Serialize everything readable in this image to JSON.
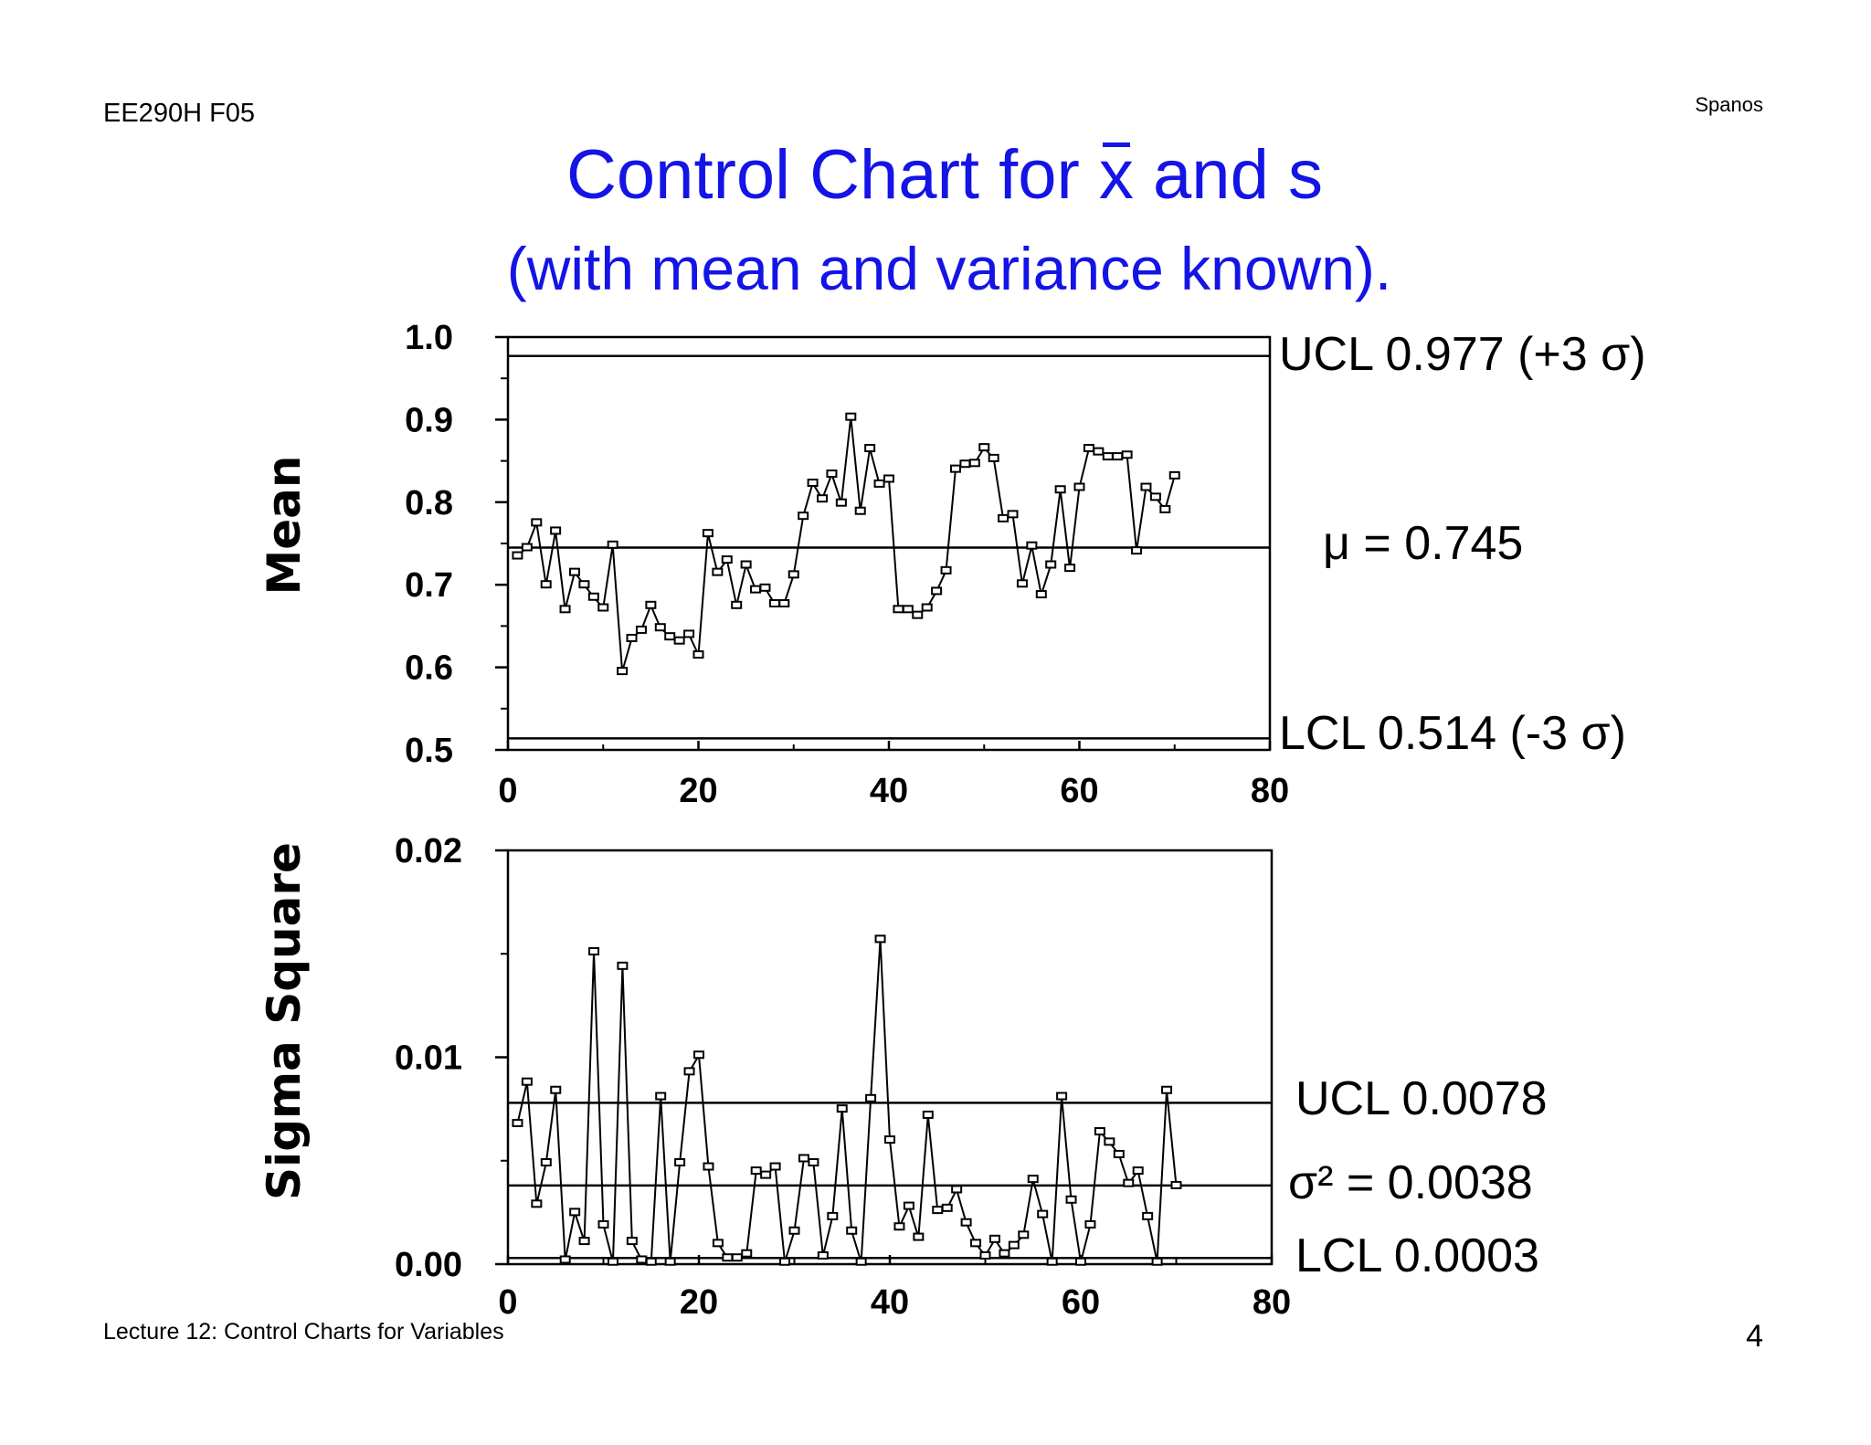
{
  "header": {
    "course": "EE290H F05",
    "author": "Spanos"
  },
  "title": {
    "prefix": "Control Chart for ",
    "xbar": "x",
    "suffix": " and s"
  },
  "subtitle": "(with mean and variance known).",
  "footer": {
    "lecture": "Lecture 12: Control Charts for Variables",
    "page": "4"
  },
  "chart_data": [
    {
      "type": "line",
      "ylabel": "Mean",
      "xlim": [
        0,
        80
      ],
      "ylim": [
        0.5,
        1.0
      ],
      "xticks": [
        0,
        20,
        40,
        60,
        80
      ],
      "xtick_labels": [
        "0",
        "20",
        "40",
        "60",
        "80"
      ],
      "yticks": [
        0.5,
        0.6,
        0.7,
        0.8,
        0.9,
        1.0
      ],
      "ytick_labels": [
        "0.5",
        "0.6",
        "0.7",
        "0.8",
        "0.9",
        "1.0"
      ],
      "reference_lines": [
        {
          "value": 0.977,
          "label": "UCL 0.977 (+3 σ)"
        },
        {
          "value": 0.745,
          "label": "μ = 0.745"
        },
        {
          "value": 0.514,
          "label": "LCL 0.514 (-3 σ)"
        }
      ],
      "x": [
        1,
        2,
        3,
        4,
        5,
        6,
        7,
        8,
        9,
        10,
        11,
        12,
        13,
        14,
        15,
        16,
        17,
        18,
        19,
        20,
        21,
        22,
        23,
        24,
        25,
        26,
        27,
        28,
        29,
        30,
        31,
        32,
        33,
        34,
        35,
        36,
        37,
        38,
        39,
        40,
        41,
        42,
        43,
        44,
        45,
        46,
        47,
        48,
        49,
        50,
        51,
        52,
        53,
        54,
        55,
        56,
        57,
        58,
        59,
        60,
        61,
        62,
        63,
        64,
        65,
        66,
        67,
        68,
        69,
        70
      ],
      "values": [
        0.735,
        0.745,
        0.775,
        0.7,
        0.765,
        0.67,
        0.715,
        0.7,
        0.685,
        0.672,
        0.748,
        0.595,
        0.635,
        0.645,
        0.675,
        0.648,
        0.637,
        0.632,
        0.64,
        0.615,
        0.762,
        0.715,
        0.73,
        0.675,
        0.724,
        0.694,
        0.696,
        0.677,
        0.677,
        0.712,
        0.783,
        0.823,
        0.804,
        0.834,
        0.799,
        0.903,
        0.789,
        0.865,
        0.822,
        0.828,
        0.67,
        0.67,
        0.663,
        0.672,
        0.692,
        0.717,
        0.84,
        0.846,
        0.847,
        0.866,
        0.853,
        0.78,
        0.785,
        0.701,
        0.747,
        0.688,
        0.724,
        0.815,
        0.72,
        0.818,
        0.865,
        0.861,
        0.855,
        0.855,
        0.857,
        0.741,
        0.818,
        0.806,
        0.791,
        0.832
      ]
    },
    {
      "type": "line",
      "ylabel": "Sigma Square",
      "xlim": [
        0,
        80
      ],
      "ylim": [
        0.0,
        0.02
      ],
      "xticks": [
        0,
        20,
        40,
        60,
        80
      ],
      "xtick_labels": [
        "0",
        "20",
        "40",
        "60",
        "80"
      ],
      "yticks": [
        0.0,
        0.01,
        0.02
      ],
      "ytick_labels": [
        "0.00",
        "0.01",
        "0.02"
      ],
      "reference_lines": [
        {
          "value": 0.0078,
          "label": "UCL 0.0078"
        },
        {
          "value": 0.0038,
          "label": "σ² = 0.0038"
        },
        {
          "value": 0.0003,
          "label": "LCL 0.0003"
        }
      ],
      "x": [
        1,
        2,
        3,
        4,
        5,
        6,
        7,
        8,
        9,
        10,
        11,
        12,
        13,
        14,
        15,
        16,
        17,
        18,
        19,
        20,
        21,
        22,
        23,
        24,
        25,
        26,
        27,
        28,
        29,
        30,
        31,
        32,
        33,
        34,
        35,
        36,
        37,
        38,
        39,
        40,
        41,
        42,
        43,
        44,
        45,
        46,
        47,
        48,
        49,
        50,
        51,
        52,
        53,
        54,
        55,
        56,
        57,
        58,
        59,
        60,
        61,
        62,
        63,
        64,
        65,
        66,
        67,
        68,
        69,
        70
      ],
      "values": [
        0.0068,
        0.0088,
        0.0029,
        0.0049,
        0.0084,
        0.0002,
        0.0025,
        0.0011,
        0.0151,
        0.0019,
        0.0001,
        0.0144,
        0.0011,
        0.0002,
        0.0001,
        0.0081,
        0.0001,
        0.0049,
        0.0093,
        0.0101,
        0.0047,
        0.001,
        0.0003,
        0.0003,
        0.0005,
        0.0045,
        0.0043,
        0.0047,
        0.0001,
        0.0016,
        0.0051,
        0.0049,
        0.0004,
        0.0023,
        0.0075,
        0.0016,
        0.0001,
        0.008,
        0.0157,
        0.006,
        0.0018,
        0.0028,
        0.0013,
        0.0072,
        0.0026,
        0.0027,
        0.0036,
        0.002,
        0.001,
        0.0004,
        0.0012,
        0.0005,
        0.0009,
        0.0014,
        0.0041,
        0.0024,
        0.0001,
        0.0081,
        0.0031,
        0.0001,
        0.0019,
        0.0064,
        0.0059,
        0.0053,
        0.0039,
        0.0045,
        0.0023,
        0.0001,
        0.0084,
        0.0038
      ]
    }
  ]
}
